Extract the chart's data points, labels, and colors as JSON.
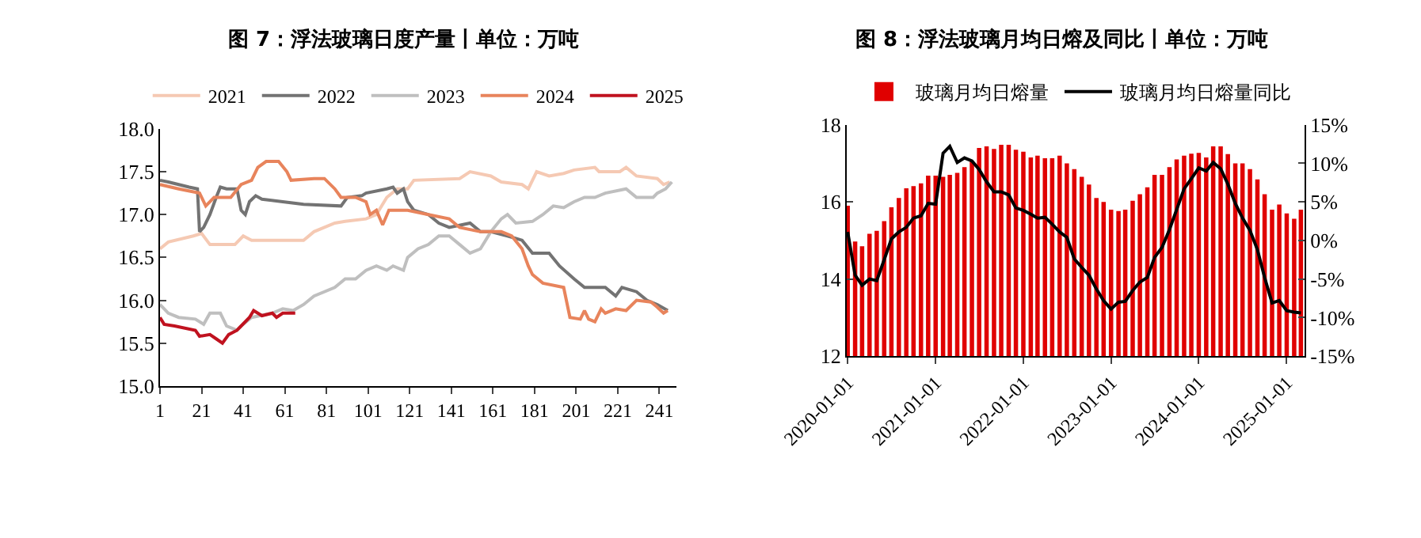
{
  "chart_data": [
    {
      "type": "line",
      "title": "图 7：浮法玻璃日度产量丨单位：万吨",
      "xlim": [
        1,
        249
      ],
      "xticks": [
        1,
        21,
        41,
        61,
        81,
        101,
        121,
        141,
        161,
        181,
        201,
        221,
        241
      ],
      "ylim": [
        15,
        18
      ],
      "yticks": [
        {
          "value": 15,
          "label": "15.0"
        },
        {
          "value": 15.5,
          "label": "15.5"
        },
        {
          "value": 16,
          "label": "16.0"
        },
        {
          "value": 16.5,
          "label": "16.5"
        },
        {
          "value": 17,
          "label": "17.0"
        },
        {
          "value": 17.5,
          "label": "17.5"
        },
        {
          "value": 18,
          "label": "18.0"
        }
      ],
      "legend": "top",
      "marker": "none",
      "line_style": "solid",
      "series": [
        {
          "name": "2021",
          "color": "#f5c9b3",
          "x": [
            1,
            5,
            17,
            21,
            25,
            37,
            41,
            45,
            70,
            75,
            80,
            85,
            90,
            100,
            105,
            110,
            115,
            120,
            123,
            145,
            150,
            160,
            165,
            175,
            178,
            182,
            188,
            195,
            200,
            210,
            212,
            222,
            225,
            230,
            240,
            243,
            246
          ],
          "values": [
            16.6,
            16.68,
            16.75,
            16.78,
            16.65,
            16.65,
            16.75,
            16.7,
            16.7,
            16.8,
            16.85,
            16.9,
            16.92,
            16.95,
            17.0,
            17.2,
            17.3,
            17.3,
            17.4,
            17.42,
            17.5,
            17.45,
            17.38,
            17.35,
            17.3,
            17.5,
            17.45,
            17.48,
            17.52,
            17.55,
            17.5,
            17.5,
            17.55,
            17.45,
            17.42,
            17.35,
            17.38
          ]
        },
        {
          "name": "2022",
          "color": "#737373",
          "x": [
            1,
            5,
            15,
            19,
            20,
            22,
            25,
            28,
            30,
            33,
            38,
            40,
            42,
            44,
            47,
            50,
            60,
            70,
            88,
            91,
            98,
            100,
            110,
            113,
            115,
            118,
            120,
            123,
            130,
            135,
            140,
            150,
            155,
            160,
            168,
            175,
            180,
            188,
            193,
            200,
            205,
            215,
            220,
            223,
            230,
            235,
            240,
            245
          ],
          "values": [
            17.4,
            17.38,
            17.32,
            17.3,
            16.8,
            16.85,
            17.0,
            17.2,
            17.32,
            17.3,
            17.3,
            17.05,
            17.0,
            17.15,
            17.22,
            17.18,
            17.15,
            17.12,
            17.1,
            17.2,
            17.22,
            17.25,
            17.3,
            17.32,
            17.25,
            17.3,
            17.15,
            17.05,
            17.0,
            16.9,
            16.85,
            16.9,
            16.8,
            16.8,
            16.75,
            16.7,
            16.55,
            16.55,
            16.4,
            16.25,
            16.15,
            16.15,
            16.05,
            16.15,
            16.1,
            16.0,
            15.95,
            15.88
          ]
        },
        {
          "name": "2023",
          "color": "#bfbfbf",
          "x": [
            1,
            5,
            10,
            18,
            22,
            25,
            30,
            33,
            38,
            40,
            45,
            55,
            60,
            65,
            70,
            75,
            85,
            90,
            95,
            100,
            105,
            110,
            113,
            118,
            120,
            125,
            130,
            135,
            140,
            145,
            150,
            155,
            160,
            165,
            168,
            172,
            180,
            185,
            190,
            195,
            200,
            205,
            210,
            215,
            225,
            230,
            238,
            240,
            244,
            247
          ],
          "values": [
            15.95,
            15.85,
            15.8,
            15.78,
            15.72,
            15.85,
            15.85,
            15.7,
            15.65,
            15.7,
            15.8,
            15.85,
            15.9,
            15.88,
            15.95,
            16.05,
            16.15,
            16.25,
            16.25,
            16.35,
            16.4,
            16.35,
            16.4,
            16.35,
            16.5,
            16.6,
            16.65,
            16.75,
            16.75,
            16.65,
            16.55,
            16.6,
            16.8,
            16.95,
            17.0,
            16.9,
            16.92,
            17.0,
            17.1,
            17.08,
            17.15,
            17.2,
            17.2,
            17.25,
            17.3,
            17.2,
            17.2,
            17.25,
            17.3,
            17.38
          ]
        },
        {
          "name": "2024",
          "color": "#e8845c",
          "x": [
            1,
            10,
            20,
            23,
            27,
            35,
            40,
            45,
            48,
            52,
            58,
            62,
            64,
            75,
            80,
            85,
            88,
            95,
            100,
            102,
            105,
            108,
            111,
            120,
            130,
            140,
            145,
            155,
            165,
            170,
            175,
            178,
            180,
            185,
            195,
            198,
            203,
            205,
            207,
            210,
            213,
            215,
            220,
            225,
            230,
            237,
            240,
            243,
            245
          ],
          "values": [
            17.35,
            17.3,
            17.25,
            17.1,
            17.2,
            17.2,
            17.35,
            17.4,
            17.55,
            17.62,
            17.62,
            17.5,
            17.4,
            17.42,
            17.42,
            17.3,
            17.2,
            17.2,
            17.15,
            17.0,
            17.05,
            16.88,
            17.05,
            17.05,
            17.0,
            16.95,
            16.85,
            16.8,
            16.8,
            16.75,
            16.6,
            16.4,
            16.3,
            16.2,
            16.15,
            15.8,
            15.78,
            15.88,
            15.78,
            15.75,
            15.9,
            15.85,
            15.9,
            15.88,
            16.0,
            15.98,
            15.92,
            15.85,
            15.88
          ]
        },
        {
          "name": "2025",
          "color": "#c0121f",
          "x": [
            1,
            3,
            8,
            18,
            20,
            25,
            28,
            31,
            34,
            38,
            40,
            44,
            46,
            50,
            55,
            57,
            60,
            66
          ],
          "values": [
            15.8,
            15.72,
            15.7,
            15.65,
            15.58,
            15.6,
            15.55,
            15.5,
            15.6,
            15.65,
            15.7,
            15.8,
            15.88,
            15.82,
            15.85,
            15.8,
            15.85,
            15.85
          ]
        }
      ]
    },
    {
      "type": "bar",
      "title": "图 8：浮法玻璃月均日熔及同比丨单位：万吨",
      "x": [
        "2020-01",
        "2020-02",
        "2020-03",
        "2020-04",
        "2020-05",
        "2020-06",
        "2020-07",
        "2020-08",
        "2020-09",
        "2020-10",
        "2020-11",
        "2020-12",
        "2021-01",
        "2021-02",
        "2021-03",
        "2021-04",
        "2021-05",
        "2021-06",
        "2021-07",
        "2021-08",
        "2021-09",
        "2021-10",
        "2021-11",
        "2021-12",
        "2022-01",
        "2022-02",
        "2022-03",
        "2022-04",
        "2022-05",
        "2022-06",
        "2022-07",
        "2022-08",
        "2022-09",
        "2022-10",
        "2022-11",
        "2022-12",
        "2023-01",
        "2023-02",
        "2023-03",
        "2023-04",
        "2023-05",
        "2023-06",
        "2023-07",
        "2023-08",
        "2023-09",
        "2023-10",
        "2023-11",
        "2023-12",
        "2024-01",
        "2024-02",
        "2024-03",
        "2024-04",
        "2024-05",
        "2024-06",
        "2024-07",
        "2024-08",
        "2024-09",
        "2024-10",
        "2024-11",
        "2024-12",
        "2025-01",
        "2025-02",
        "2025-03"
      ],
      "xlim": [
        "2019-12-28",
        "2025-03-16"
      ],
      "xticks": [
        "2020-01-01",
        "2021-01-01",
        "2022-01-01",
        "2023-01-01",
        "2024-01-01",
        "2025-01-01"
      ],
      "ylim": [
        12,
        18
      ],
      "yticks": [
        12,
        14,
        16,
        18
      ],
      "y2lim": [
        -15,
        15
      ],
      "y2ticks": [
        {
          "value": -15,
          "label": "-15%"
        },
        {
          "value": -10,
          "label": "-10%"
        },
        {
          "value": -5,
          "label": "-5%"
        },
        {
          "value": 0,
          "label": "0%"
        },
        {
          "value": 5,
          "label": "5%"
        },
        {
          "value": 10,
          "label": "10%"
        },
        {
          "value": 15,
          "label": "15%"
        }
      ],
      "legend": "top",
      "marker": "none",
      "line_style": "solid",
      "series": [
        {
          "name": "玻璃月均日熔量",
          "type": "bar",
          "color": "#e00000",
          "values": [
            15.9,
            14.97,
            14.85,
            15.17,
            15.25,
            15.5,
            15.86,
            16.1,
            16.35,
            16.41,
            16.48,
            16.68,
            16.68,
            16.65,
            16.7,
            16.75,
            16.9,
            17.05,
            17.4,
            17.44,
            17.37,
            17.48,
            17.48,
            17.35,
            17.3,
            17.15,
            17.2,
            17.13,
            17.13,
            17.2,
            17.0,
            16.85,
            16.65,
            16.45,
            16.1,
            16.0,
            15.8,
            15.76,
            15.8,
            16.03,
            16.2,
            16.38,
            16.7,
            16.7,
            16.9,
            17.1,
            17.2,
            17.25,
            17.27,
            17.15,
            17.44,
            17.44,
            17.24,
            17.0,
            17.0,
            16.85,
            16.58,
            16.2,
            15.8,
            15.93,
            15.7,
            15.56,
            15.8
          ]
        },
        {
          "name": "玻璃月均日熔量同比",
          "type": "line",
          "axis": "y2",
          "color": "#000000",
          "values": [
            1.1,
            -4.5,
            -5.8,
            -5.0,
            -5.2,
            -2.5,
            0.2,
            1.1,
            1.7,
            2.9,
            3.2,
            4.8,
            4.7,
            11.3,
            12.2,
            10.1,
            10.7,
            10.3,
            9.2,
            7.6,
            6.3,
            6.3,
            5.9,
            4.2,
            3.9,
            3.4,
            2.9,
            3.0,
            2.1,
            1.1,
            0.4,
            -2.4,
            -3.5,
            -4.5,
            -6.3,
            -7.8,
            -8.9,
            -8.0,
            -7.9,
            -6.5,
            -5.4,
            -4.8,
            -2.2,
            -0.9,
            1.4,
            4.0,
            6.7,
            8.0,
            9.4,
            9.0,
            10.1,
            9.3,
            7.3,
            4.8,
            2.9,
            1.3,
            -1.2,
            -4.8,
            -8.1,
            -7.8,
            -9.1,
            -9.3,
            -9.4
          ]
        }
      ]
    }
  ]
}
